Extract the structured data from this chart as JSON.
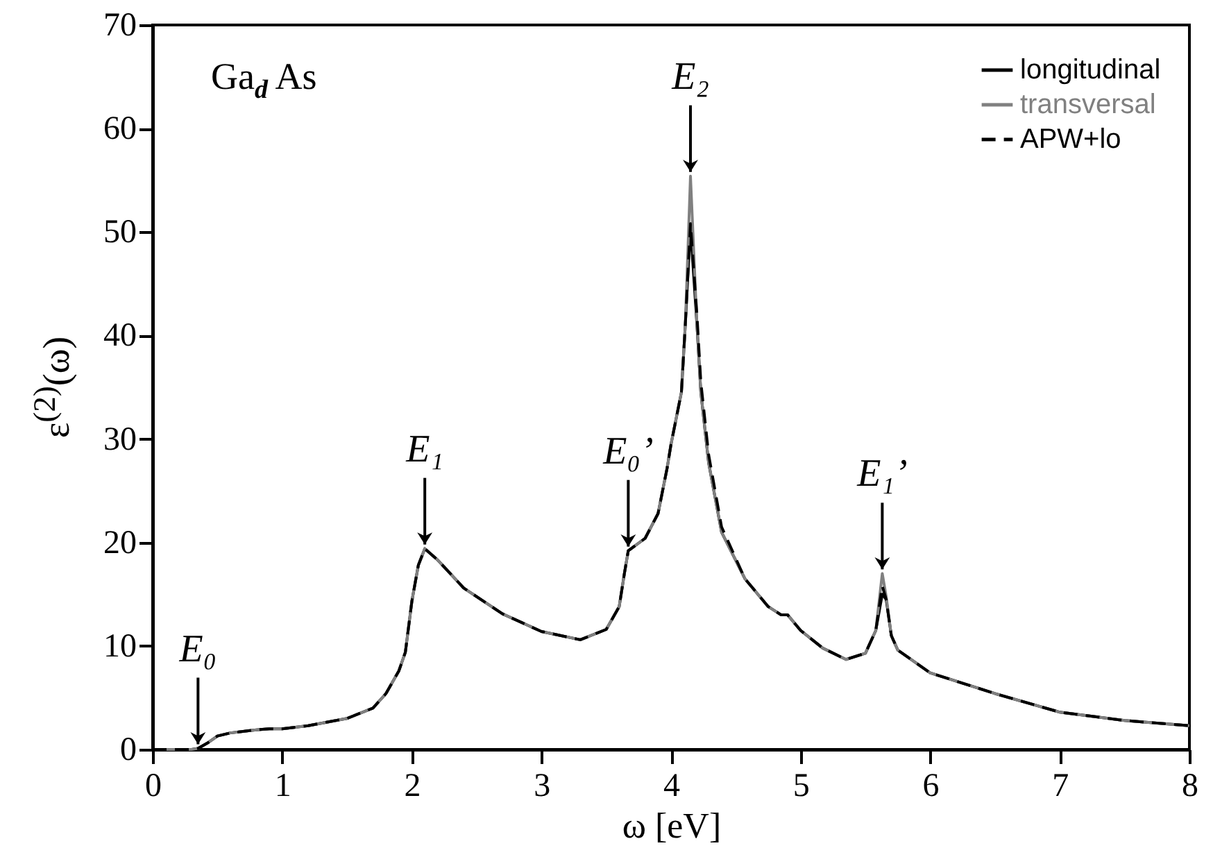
{
  "chart_data": {
    "type": "line",
    "xlabel": "ω [eV]",
    "ylabel": "ε$^{(2)}$(ω)",
    "x": [
      0,
      0.3,
      0.35,
      0.42,
      0.5,
      0.6,
      0.8,
      0.9,
      1.0,
      1.2,
      1.5,
      1.7,
      1.8,
      1.9,
      1.95,
      2.0,
      2.05,
      2.1,
      2.2,
      2.4,
      2.7,
      3.0,
      3.3,
      3.5,
      3.6,
      3.64,
      3.67,
      3.8,
      3.9,
      3.97,
      4.0,
      4.08,
      4.11,
      4.15,
      4.2,
      4.23,
      4.29,
      4.39,
      4.57,
      4.75,
      4.85,
      4.9,
      5.0,
      5.17,
      5.35,
      5.5,
      5.58,
      5.63,
      5.66,
      5.7,
      5.75,
      6.0,
      6.5,
      7.0,
      7.5,
      8.0
    ],
    "series": [
      {
        "name": "longitudinal",
        "color": "#000000",
        "line_style": "solid",
        "values": [
          0,
          0,
          0.1,
          0.6,
          1.3,
          1.6,
          1.9,
          2.0,
          2.0,
          2.3,
          3.0,
          4.0,
          5.4,
          7.6,
          9.4,
          14.3,
          17.8,
          19.4,
          18.3,
          15.6,
          13.1,
          11.4,
          10.6,
          11.6,
          13.8,
          17.0,
          19.2,
          20.4,
          22.8,
          27.2,
          29.5,
          34.5,
          41,
          50.5,
          41,
          34.5,
          27.7,
          21,
          16.5,
          13.8,
          13.0,
          13.0,
          11.5,
          9.8,
          8.7,
          9.3,
          11.5,
          15.0,
          14.5,
          11,
          9.6,
          7.4,
          5.4,
          3.6,
          2.8,
          2.3
        ]
      },
      {
        "name": "transversal",
        "color": "#808080",
        "line_style": "solid",
        "values": [
          0,
          0,
          0.1,
          0.6,
          1.3,
          1.6,
          1.9,
          2.0,
          2.0,
          2.3,
          3.0,
          4.0,
          5.4,
          7.6,
          9.4,
          14.3,
          17.8,
          19.4,
          18.3,
          15.6,
          13.1,
          11.4,
          10.6,
          11.6,
          13.8,
          17.0,
          19.2,
          20.4,
          22.8,
          27.2,
          29.5,
          34.5,
          41,
          55.4,
          41,
          34.5,
          27.7,
          21,
          16.5,
          13.8,
          13.0,
          13.0,
          11.5,
          9.8,
          8.7,
          9.3,
          11.5,
          17.0,
          14.8,
          11,
          9.6,
          7.4,
          5.4,
          3.6,
          2.8,
          2.3
        ]
      },
      {
        "name": "APW+lo",
        "color": "#000000",
        "line_style": "dashed",
        "values": [
          0,
          0,
          0.1,
          0.6,
          1.3,
          1.6,
          1.9,
          2.0,
          2.0,
          2.3,
          3.0,
          4.0,
          5.4,
          7.6,
          9.4,
          14.3,
          17.8,
          19.4,
          18.3,
          15.6,
          13.1,
          11.4,
          10.6,
          11.6,
          13.8,
          17.0,
          19.2,
          20.4,
          22.8,
          27.2,
          29.5,
          34.5,
          41,
          50.8,
          42,
          35.5,
          28.5,
          21.5,
          16.5,
          13.8,
          13.0,
          13.0,
          11.5,
          9.8,
          8.7,
          9.3,
          11.5,
          15.8,
          14.5,
          11,
          9.6,
          7.4,
          5.4,
          3.6,
          2.8,
          2.3
        ]
      }
    ],
    "xlim": [
      0,
      8
    ],
    "xticks": [
      0,
      1,
      2,
      3,
      4,
      5,
      6,
      7,
      8
    ],
    "ylim": [
      0,
      70
    ],
    "yticks": [
      0,
      10,
      20,
      30,
      40,
      50,
      60,
      70
    ],
    "grid": false,
    "legend": "top right",
    "annotations": [
      "Ga$_{d}$ As",
      {
        "text": "E₀",
        "x": 0.35,
        "y": 0.1
      },
      {
        "text": "E₁",
        "x": 2.1,
        "y": 19.4
      },
      {
        "text": "E₀’",
        "x": 3.67,
        "y": 19.2
      },
      {
        "text": "E₂",
        "x": 4.15,
        "y": 55.4
      },
      {
        "text": "E₁’",
        "x": 5.63,
        "y": 17.0
      }
    ]
  }
}
